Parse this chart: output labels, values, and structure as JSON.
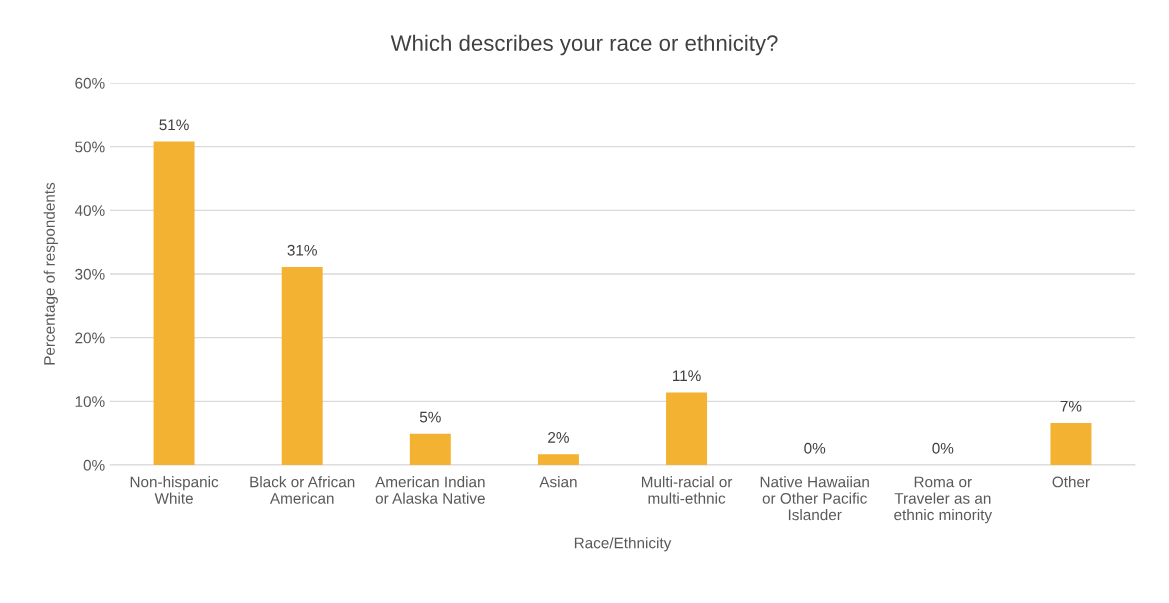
{
  "chart_data": {
    "type": "bar",
    "title": "Which describes your race or ethnicity?",
    "xlabel": "Race/Ethnicity",
    "ylabel": "Percentage of respondents",
    "categories": [
      "Non-hispanic\nWhite",
      "Black or African\nAmerican",
      "American Indian\nor Alaska Native",
      "Asian",
      "Multi-racial or\nmulti-ethnic",
      "Native Hawaiian\nor Other Pacific\nIslander",
      "Roma or\nTraveler as an\nethnic minority",
      "Other"
    ],
    "values": [
      50.8,
      31.1,
      4.9,
      1.7,
      11.4,
      0,
      0,
      6.6
    ],
    "value_labels": [
      "51%",
      "31%",
      "5%",
      "2%",
      "11%",
      "0%",
      "0%",
      "7%"
    ],
    "color": "#f4b233",
    "ylim": [
      0,
      60
    ],
    "yticks": [
      {
        "value": 0,
        "label": "0%"
      },
      {
        "value": 10,
        "label": "10%"
      },
      {
        "value": 20,
        "label": "20%"
      },
      {
        "value": 30,
        "label": "30%"
      },
      {
        "value": 40,
        "label": "40%"
      },
      {
        "value": 50,
        "label": "50%"
      },
      {
        "value": 60,
        "label": "60%"
      }
    ],
    "grid": "y",
    "legend": false
  }
}
